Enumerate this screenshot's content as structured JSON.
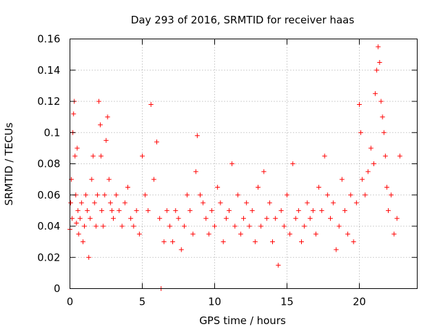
{
  "chart_data": {
    "type": "scatter",
    "title": "Day 293 of 2016, SRMTID for receiver haas",
    "xlabel": "GPS time / hours",
    "ylabel": "SRMTID / TECUs",
    "xlim": [
      0,
      24
    ],
    "ylim": [
      0,
      0.16
    ],
    "xticks": [
      0,
      5,
      10,
      15,
      20
    ],
    "xtick_labels": [
      "0",
      "5",
      "10",
      "15",
      "20"
    ],
    "yticks": [
      0,
      0.02,
      0.04,
      0.06,
      0.08,
      0.1,
      0.12,
      0.14,
      0.16
    ],
    "ytick_labels": [
      "0",
      "0.02",
      "0.04",
      "0.06",
      "0.08",
      "0.1",
      "0.12",
      "0.14",
      "0.16"
    ],
    "grid": true,
    "marker": "+",
    "color": "#ff0000",
    "series": [
      {
        "name": "SRMTID",
        "x": [
          0.0,
          0.05,
          0.1,
          0.15,
          0.2,
          0.25,
          0.3,
          0.35,
          0.4,
          0.45,
          0.5,
          0.55,
          0.6,
          0.7,
          0.8,
          0.9,
          1.0,
          1.1,
          1.2,
          1.3,
          1.4,
          1.5,
          1.6,
          1.7,
          1.8,
          1.9,
          2.0,
          2.1,
          2.15,
          2.2,
          2.3,
          2.4,
          2.5,
          2.6,
          2.7,
          2.8,
          2.9,
          3.0,
          3.2,
          3.4,
          3.6,
          3.8,
          4.0,
          4.2,
          4.4,
          4.6,
          4.8,
          5.0,
          5.2,
          5.4,
          5.6,
          5.8,
          6.0,
          6.2,
          6.3,
          6.5,
          6.7,
          6.9,
          7.1,
          7.3,
          7.5,
          7.7,
          7.9,
          8.1,
          8.3,
          8.5,
          8.7,
          8.8,
          9.0,
          9.2,
          9.4,
          9.6,
          9.8,
          10.0,
          10.2,
          10.4,
          10.6,
          10.8,
          11.0,
          11.2,
          11.4,
          11.6,
          11.8,
          12.0,
          12.2,
          12.4,
          12.6,
          12.8,
          13.0,
          13.2,
          13.4,
          13.6,
          13.8,
          14.0,
          14.2,
          14.4,
          14.6,
          14.8,
          15.0,
          15.2,
          15.4,
          15.6,
          15.8,
          16.0,
          16.2,
          16.4,
          16.6,
          16.8,
          17.0,
          17.2,
          17.4,
          17.6,
          17.8,
          18.0,
          18.2,
          18.4,
          18.6,
          18.8,
          19.0,
          19.2,
          19.4,
          19.6,
          19.8,
          20.0,
          20.1,
          20.2,
          20.4,
          20.6,
          20.8,
          21.0,
          21.1,
          21.2,
          21.3,
          21.4,
          21.5,
          21.6,
          21.7,
          21.8,
          21.9,
          22.0,
          22.2,
          22.4,
          22.6,
          22.8
        ],
        "y": [
          0.038,
          0.055,
          0.07,
          0.045,
          0.1,
          0.112,
          0.12,
          0.085,
          0.06,
          0.042,
          0.09,
          0.05,
          0.035,
          0.045,
          0.055,
          0.03,
          0.04,
          0.06,
          0.05,
          0.02,
          0.045,
          0.07,
          0.085,
          0.055,
          0.04,
          0.06,
          0.12,
          0.105,
          0.085,
          0.05,
          0.04,
          0.06,
          0.095,
          0.11,
          0.07,
          0.055,
          0.05,
          0.045,
          0.06,
          0.05,
          0.04,
          0.055,
          0.065,
          0.045,
          0.04,
          0.05,
          0.035,
          0.085,
          0.06,
          0.05,
          0.118,
          0.07,
          0.094,
          0.045,
          0.0,
          0.03,
          0.05,
          0.04,
          0.03,
          0.05,
          0.045,
          0.025,
          0.04,
          0.06,
          0.05,
          0.035,
          0.075,
          0.098,
          0.06,
          0.055,
          0.045,
          0.035,
          0.05,
          0.04,
          0.065,
          0.055,
          0.03,
          0.045,
          0.05,
          0.08,
          0.04,
          0.06,
          0.035,
          0.045,
          0.055,
          0.04,
          0.05,
          0.03,
          0.065,
          0.04,
          0.075,
          0.045,
          0.055,
          0.03,
          0.045,
          0.015,
          0.05,
          0.04,
          0.06,
          0.035,
          0.08,
          0.045,
          0.05,
          0.03,
          0.04,
          0.055,
          0.045,
          0.05,
          0.035,
          0.065,
          0.05,
          0.085,
          0.06,
          0.045,
          0.055,
          0.025,
          0.04,
          0.07,
          0.05,
          0.035,
          0.06,
          0.03,
          0.055,
          0.118,
          0.1,
          0.07,
          0.06,
          0.075,
          0.09,
          0.08,
          0.125,
          0.14,
          0.155,
          0.145,
          0.12,
          0.11,
          0.1,
          0.085,
          0.065,
          0.05,
          0.06,
          0.035,
          0.045,
          0.085
        ]
      }
    ]
  }
}
